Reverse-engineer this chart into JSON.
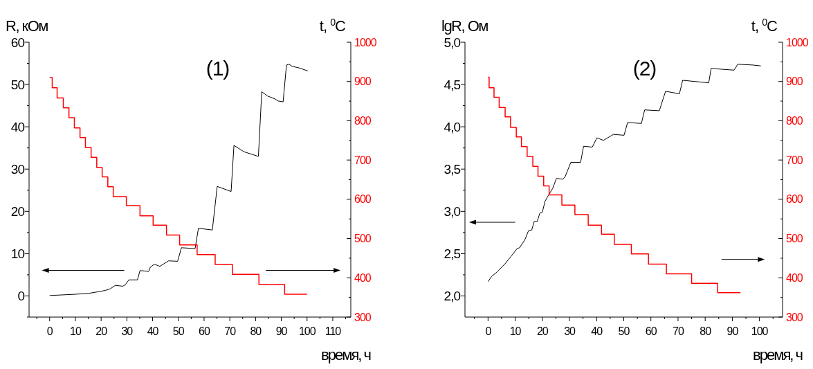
{
  "chart_data": [
    {
      "type": "line",
      "title": "(1)",
      "xlabel": "время, ч",
      "ylabel": "R, кОм",
      "y2label": "t, $^{0}$C",
      "xlim": [
        -8,
        117
      ],
      "xticks": [
        {
          "value": -5,
          "label": null
        },
        0,
        {
          "value": 5,
          "label": null
        },
        10,
        {
          "value": 15,
          "label": null
        },
        20,
        {
          "value": 25,
          "label": null
        },
        30,
        {
          "value": 35,
          "label": null
        },
        40,
        {
          "value": 45,
          "label": null
        },
        50,
        {
          "value": 55,
          "label": null
        },
        60,
        {
          "value": 65,
          "label": null
        },
        70,
        {
          "value": 75,
          "label": null
        },
        80,
        {
          "value": 85,
          "label": null
        },
        90,
        {
          "value": 95,
          "label": null
        },
        100,
        {
          "value": 105,
          "label": null
        },
        110,
        {
          "value": 115,
          "label": null
        }
      ],
      "ylim": [
        -5,
        60
      ],
      "yticks": [
        {
          "value": -5,
          "label": null
        },
        0,
        {
          "value": 5,
          "label": null
        },
        10,
        {
          "value": 15,
          "label": null
        },
        20,
        {
          "value": 25,
          "label": null
        },
        30,
        {
          "value": 35,
          "label": null
        },
        40,
        {
          "value": 45,
          "label": null
        },
        50,
        {
          "value": 55,
          "label": null
        },
        60
      ],
      "y2lim": [
        300,
        1000
      ],
      "y2ticks": [
        300,
        {
          "value": 350,
          "label": null
        },
        400,
        {
          "value": 450,
          "label": null
        },
        500,
        {
          "value": 550,
          "label": null
        },
        600,
        {
          "value": 650,
          "label": null
        },
        700,
        {
          "value": 750,
          "label": null
        },
        800,
        {
          "value": 850,
          "label": null
        },
        900,
        {
          "value": 950,
          "label": null
        },
        1000
      ],
      "series": [
        {
          "type": "line",
          "color": "#000000",
          "x": [
            0,
            10,
            15,
            19,
            21.6,
            23.6,
            25.5,
            28.4,
            29.3,
            30.8,
            34.1,
            35.1,
            38.5,
            39.1,
            40.7,
            42.8,
            46.2,
            49.7,
            51.2,
            56.5,
            57.8,
            63.2,
            65.1,
            70.5,
            71.6,
            75.5,
            81.1,
            82.4,
            84.6,
            87.5,
            88.8,
            90.7,
            92,
            93,
            94.2,
            97.1,
            100.3
          ],
          "values": [
            0.1,
            0.4,
            0.6,
            1.0,
            1.3,
            1.7,
            2.5,
            2.3,
            2.6,
            3.8,
            3.8,
            6.0,
            5.8,
            6.8,
            7.5,
            7.0,
            8.3,
            8.2,
            11.4,
            11.2,
            16.0,
            15.6,
            25.9,
            24.7,
            35.6,
            34.1,
            33.0,
            48.3,
            47.3,
            46.6,
            46.1,
            45.9,
            54.6,
            54.8,
            54.3,
            53.9,
            53.2
          ]
        },
        {
          "type": "step",
          "axis": "y2",
          "color": "#ff0000",
          "x": [
            0,
            1,
            2.9,
            5.3,
            7.5,
            9.6,
            11.8,
            13.9,
            16.1,
            18.3,
            20.4,
            22.6,
            24.7,
            29.8,
            35.1,
            40.2,
            45.4,
            50.5,
            57.3,
            64.3,
            71,
            81.3,
            91.3,
            100
          ],
          "values": [
            910,
            884,
            858,
            833,
            808,
            782,
            757,
            732,
            707,
            681,
            657,
            632,
            607,
            584,
            558,
            534,
            509,
            484,
            459,
            434,
            409,
            383,
            358,
            358
          ]
        }
      ]
    },
    {
      "type": "line",
      "title": "(2)",
      "xlabel": "время, ч",
      "ylabel": "lgR, Ом",
      "y2label": "t, $^{0}$C",
      "xlim": [
        -8.5,
        108.5
      ],
      "xticks": [
        {
          "value": -5,
          "label": null
        },
        0,
        {
          "value": 5,
          "label": null
        },
        10,
        {
          "value": 15,
          "label": null
        },
        20,
        {
          "value": 25,
          "label": null
        },
        30,
        {
          "value": 35,
          "label": null
        },
        40,
        {
          "value": 45,
          "label": null
        },
        50,
        {
          "value": 55,
          "label": null
        },
        60,
        {
          "value": 65,
          "label": null
        },
        70,
        {
          "value": 75,
          "label": null
        },
        80,
        {
          "value": 85,
          "label": null
        },
        90,
        {
          "value": 95,
          "label": null
        },
        100,
        {
          "value": 105,
          "label": null
        }
      ],
      "ylim": [
        1.75,
        5
      ],
      "yticks": [
        {
          "value": 2,
          "label": "2,0"
        },
        {
          "value": 2.25,
          "label": null
        },
        {
          "value": 2.5,
          "label": "2,5"
        },
        {
          "value": 2.75,
          "label": null
        },
        {
          "value": 3,
          "label": "3,0"
        },
        {
          "value": 3.25,
          "label": null
        },
        {
          "value": 3.5,
          "label": "3,5"
        },
        {
          "value": 3.75,
          "label": null
        },
        {
          "value": 4,
          "label": "4,0"
        },
        {
          "value": 4.25,
          "label": null
        },
        {
          "value": 4.5,
          "label": "4,5"
        },
        {
          "value": 4.75,
          "label": null
        },
        {
          "value": 5,
          "label": "5,0"
        }
      ],
      "y2lim": [
        300,
        1000
      ],
      "y2ticks": [
        300,
        {
          "value": 350,
          "label": null
        },
        400,
        {
          "value": 450,
          "label": null
        },
        500,
        {
          "value": 550,
          "label": null
        },
        600,
        {
          "value": 650,
          "label": null
        },
        700,
        {
          "value": 750,
          "label": null
        },
        800,
        {
          "value": 850,
          "label": null
        },
        900,
        {
          "value": 950,
          "label": null
        },
        1000
      ],
      "series": [
        {
          "type": "line",
          "color": "#000000",
          "x": [
            0,
            1.3,
            3.2,
            6,
            8.8,
            10.7,
            11.6,
            13.5,
            14.9,
            16.1,
            17,
            18.1,
            19.1,
            20,
            21,
            22.6,
            23.8,
            25.2,
            27.5,
            28.4,
            30.5,
            34.1,
            35.2,
            38.4,
            40.1,
            42.5,
            46.2,
            50.1,
            51.4,
            56.5,
            57.7,
            63.1,
            65.4,
            70.5,
            71.7,
            81.3,
            82.2,
            90.6,
            92,
            97.7,
            100.5
          ],
          "values": [
            2.17,
            2.23,
            2.28,
            2.37,
            2.48,
            2.56,
            2.57,
            2.66,
            2.77,
            2.78,
            2.88,
            2.88,
            2.98,
            2.99,
            3.12,
            3.21,
            3.27,
            3.39,
            3.38,
            3.41,
            3.58,
            3.58,
            3.77,
            3.76,
            3.87,
            3.84,
            3.91,
            3.9,
            4.05,
            4.04,
            4.2,
            4.19,
            4.42,
            4.39,
            4.55,
            4.52,
            4.69,
            4.67,
            4.74,
            4.73,
            4.72
          ]
        },
        {
          "type": "step",
          "axis": "y2",
          "color": "#ff0000",
          "x": [
            0,
            0.4,
            2.2,
            4.1,
            6.3,
            8.3,
            10.4,
            12.3,
            14.4,
            16.5,
            18.4,
            20.5,
            22.5,
            27.2,
            32,
            36.9,
            41.8,
            46.5,
            52.8,
            59.1,
            65.7,
            75,
            84.6,
            93
          ],
          "values": [
            911,
            884,
            860,
            834,
            810,
            783,
            759,
            734,
            709,
            684,
            659,
            634,
            611,
            585,
            561,
            534,
            511,
            485,
            461,
            435,
            410,
            386,
            362,
            362
          ]
        }
      ]
    }
  ]
}
